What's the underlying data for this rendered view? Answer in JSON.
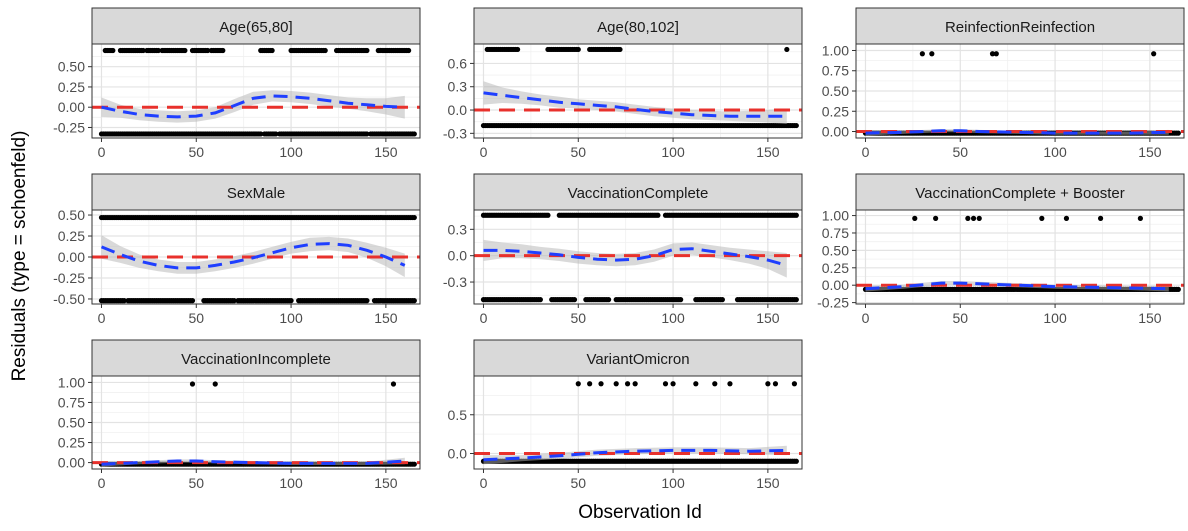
{
  "chart_data": {
    "type": "scatter",
    "xlabel": "Observation Id",
    "ylabel": "Residuals (type = schoenfeld)",
    "grid": true,
    "colors": {
      "points": "#000000",
      "smooth": "#1f3fff",
      "reference": "#e8312c",
      "band": "#b3b3b3",
      "strip": "#d9d9d9"
    },
    "panels": [
      {
        "title": "Age(65,80]",
        "xlim": [
          -5,
          168
        ],
        "ylim": [
          -0.38,
          0.78
        ],
        "xticks": [
          0,
          50,
          100,
          150
        ],
        "yticks": [
          -0.25,
          0.0,
          0.25,
          0.5
        ],
        "ytick_labels": [
          "-0.25",
          "0.00",
          "0.25",
          "0.50"
        ],
        "points": {
          "levels": [
            0.7,
            -0.33
          ],
          "top_ranges": [
            [
              2,
              6
            ],
            [
              10,
              22
            ],
            [
              24,
              30
            ],
            [
              32,
              44
            ],
            [
              48,
              56
            ],
            [
              58,
              64
            ],
            [
              84,
              90
            ],
            [
              100,
              118
            ],
            [
              124,
              140
            ],
            [
              146,
              162
            ]
          ],
          "bottom_ranges": [
            [
              0,
              84
            ],
            [
              86,
              92
            ],
            [
              94,
              140
            ],
            [
              142,
              165
            ]
          ]
        },
        "smooth": {
          "x": [
            0,
            10,
            20,
            30,
            40,
            50,
            60,
            70,
            80,
            90,
            100,
            110,
            120,
            130,
            140,
            150,
            160
          ],
          "y": [
            0.0,
            -0.05,
            -0.09,
            -0.11,
            -0.12,
            -0.11,
            -0.07,
            0.02,
            0.11,
            0.14,
            0.13,
            0.11,
            0.08,
            0.05,
            0.03,
            0.01,
            0.0
          ],
          "band": [
            0.12,
            0.08,
            0.07,
            0.07,
            0.07,
            0.07,
            0.07,
            0.08,
            0.08,
            0.07,
            0.07,
            0.07,
            0.07,
            0.07,
            0.08,
            0.1,
            0.14
          ]
        }
      },
      {
        "title": "Age(80,102]",
        "xlim": [
          -5,
          168
        ],
        "ylim": [
          -0.36,
          0.85
        ],
        "xticks": [
          0,
          50,
          100,
          150
        ],
        "yticks": [
          -0.3,
          0.0,
          0.3,
          0.6
        ],
        "ytick_labels": [
          "-0.3",
          "0.0",
          "0.3",
          "0.6"
        ],
        "points": {
          "levels": [
            0.78,
            -0.2
          ],
          "top_ranges": [
            [
              2,
              18
            ],
            [
              34,
              50
            ],
            [
              56,
              72
            ],
            [
              160,
              160
            ]
          ],
          "bottom_ranges": [
            [
              0,
              165
            ]
          ]
        },
        "smooth": {
          "x": [
            0,
            10,
            20,
            30,
            40,
            50,
            60,
            70,
            80,
            90,
            100,
            110,
            120,
            130,
            140,
            150,
            160
          ],
          "y": [
            0.22,
            0.19,
            0.16,
            0.13,
            0.1,
            0.08,
            0.06,
            0.04,
            0.01,
            -0.02,
            -0.04,
            -0.06,
            -0.07,
            -0.08,
            -0.08,
            -0.08,
            -0.08
          ],
          "band": [
            0.15,
            0.1,
            0.08,
            0.07,
            0.07,
            0.06,
            0.06,
            0.06,
            0.06,
            0.06,
            0.06,
            0.06,
            0.06,
            0.06,
            0.07,
            0.08,
            0.1
          ]
        }
      },
      {
        "title": "ReinfectionReinfection",
        "xlim": [
          -5,
          168
        ],
        "ylim": [
          -0.08,
          1.08
        ],
        "xticks": [
          0,
          50,
          100,
          150
        ],
        "yticks": [
          0.0,
          0.25,
          0.5,
          0.75,
          1.0
        ],
        "ytick_labels": [
          "0.00",
          "0.25",
          "0.50",
          "0.75",
          "1.00"
        ],
        "points": {
          "levels": [
            0.96,
            -0.02
          ],
          "top_ranges": [
            [
              30,
              30
            ],
            [
              35,
              35
            ],
            [
              67,
              67
            ],
            [
              69,
              69
            ],
            [
              152,
              152
            ]
          ],
          "bottom_ranges": [
            [
              0,
              165
            ]
          ]
        },
        "smooth": {
          "x": [
            0,
            20,
            40,
            50,
            60,
            80,
            100,
            120,
            140,
            160
          ],
          "y": [
            -0.02,
            -0.01,
            0.01,
            0.01,
            0.0,
            -0.01,
            -0.02,
            -0.02,
            -0.02,
            -0.01
          ],
          "band": [
            0.03,
            0.02,
            0.02,
            0.02,
            0.02,
            0.02,
            0.02,
            0.02,
            0.02,
            0.03
          ]
        }
      },
      {
        "title": "SexMale",
        "xlim": [
          -5,
          168
        ],
        "ylim": [
          -0.56,
          0.56
        ],
        "xticks": [
          0,
          50,
          100,
          150
        ],
        "yticks": [
          -0.5,
          -0.25,
          0.0,
          0.25,
          0.5
        ],
        "ytick_labels": [
          "-0.50",
          "-0.25",
          "0.00",
          "0.25",
          "0.50"
        ],
        "points": {
          "levels": [
            0.47,
            -0.52
          ],
          "top_ranges": [
            [
              0,
              165
            ]
          ],
          "bottom_ranges": [
            [
              0,
              12
            ],
            [
              14,
              48
            ],
            [
              54,
              70
            ],
            [
              72,
              100
            ],
            [
              104,
              140
            ],
            [
              144,
              165
            ]
          ]
        },
        "smooth": {
          "x": [
            0,
            10,
            20,
            30,
            40,
            50,
            60,
            70,
            80,
            90,
            100,
            110,
            120,
            130,
            140,
            150,
            160
          ],
          "y": [
            0.12,
            0.03,
            -0.05,
            -0.1,
            -0.13,
            -0.13,
            -0.1,
            -0.06,
            -0.01,
            0.05,
            0.11,
            0.15,
            0.16,
            0.14,
            0.08,
            0.0,
            -0.1
          ],
          "band": [
            0.14,
            0.1,
            0.08,
            0.07,
            0.07,
            0.07,
            0.07,
            0.07,
            0.07,
            0.07,
            0.07,
            0.08,
            0.08,
            0.08,
            0.09,
            0.11,
            0.14
          ]
        }
      },
      {
        "title": "VaccinationComplete",
        "xlim": [
          -5,
          168
        ],
        "ylim": [
          -0.55,
          0.52
        ],
        "xticks": [
          0,
          50,
          100,
          150
        ],
        "yticks": [
          -0.3,
          0.0,
          0.3
        ],
        "ytick_labels": [
          "-0.3",
          "0.0",
          "0.3"
        ],
        "points": {
          "levels": [
            0.46,
            -0.5
          ],
          "top_ranges": [
            [
              0,
              34
            ],
            [
              40,
              92
            ],
            [
              96,
              165
            ]
          ],
          "bottom_ranges": [
            [
              0,
              30
            ],
            [
              36,
              48
            ],
            [
              54,
              66
            ],
            [
              70,
              104
            ],
            [
              112,
              126
            ],
            [
              134,
              165
            ]
          ]
        },
        "smooth": {
          "x": [
            0,
            10,
            20,
            30,
            40,
            50,
            60,
            70,
            80,
            90,
            100,
            110,
            120,
            130,
            140,
            150,
            160
          ],
          "y": [
            0.06,
            0.06,
            0.05,
            0.03,
            0.01,
            -0.02,
            -0.04,
            -0.05,
            -0.04,
            0.0,
            0.07,
            0.08,
            0.05,
            0.02,
            -0.01,
            -0.05,
            -0.11
          ],
          "band": [
            0.12,
            0.09,
            0.08,
            0.07,
            0.07,
            0.07,
            0.07,
            0.07,
            0.07,
            0.07,
            0.07,
            0.07,
            0.07,
            0.07,
            0.08,
            0.1,
            0.14
          ]
        }
      },
      {
        "title": "VaccinationComplete + Booster",
        "xlim": [
          -5,
          168
        ],
        "ylim": [
          -0.27,
          1.08
        ],
        "xticks": [
          0,
          50,
          100,
          150
        ],
        "yticks": [
          -0.25,
          0.0,
          0.25,
          0.5,
          0.75,
          1.0
        ],
        "ytick_labels": [
          "-0.25",
          "0.00",
          "0.25",
          "0.50",
          "0.75",
          "1.00"
        ],
        "points": {
          "levels": [
            0.96,
            -0.06
          ],
          "top_ranges": [
            [
              26,
              26
            ],
            [
              37,
              37
            ],
            [
              54,
              54
            ],
            [
              57,
              57
            ],
            [
              60,
              60
            ],
            [
              93,
              93
            ],
            [
              106,
              106
            ],
            [
              124,
              124
            ],
            [
              145,
              145
            ]
          ],
          "bottom_ranges": [
            [
              0,
              165
            ]
          ]
        },
        "smooth": {
          "x": [
            0,
            20,
            40,
            50,
            60,
            80,
            100,
            120,
            140,
            160
          ],
          "y": [
            -0.05,
            -0.02,
            0.03,
            0.03,
            0.02,
            0.0,
            -0.02,
            -0.03,
            -0.04,
            -0.05
          ],
          "band": [
            0.04,
            0.03,
            0.03,
            0.03,
            0.03,
            0.03,
            0.03,
            0.03,
            0.03,
            0.04
          ]
        }
      },
      {
        "title": "VaccinationIncomplete",
        "xlim": [
          -5,
          168
        ],
        "ylim": [
          -0.08,
          1.08
        ],
        "xticks": [
          0,
          50,
          100,
          150
        ],
        "yticks": [
          0.0,
          0.25,
          0.5,
          0.75,
          1.0
        ],
        "ytick_labels": [
          "0.00",
          "0.25",
          "0.50",
          "0.75",
          "1.00"
        ],
        "points": {
          "levels": [
            0.98,
            -0.02
          ],
          "top_ranges": [
            [
              48,
              48
            ],
            [
              60,
              60
            ],
            [
              154,
              154
            ]
          ],
          "bottom_ranges": [
            [
              0,
              165
            ]
          ]
        },
        "smooth": {
          "x": [
            0,
            20,
            40,
            50,
            60,
            80,
            100,
            120,
            140,
            160
          ],
          "y": [
            -0.02,
            0.0,
            0.02,
            0.02,
            0.01,
            0.0,
            -0.01,
            -0.01,
            -0.01,
            0.02
          ],
          "band": [
            0.03,
            0.02,
            0.02,
            0.02,
            0.02,
            0.02,
            0.02,
            0.02,
            0.02,
            0.04
          ]
        }
      },
      {
        "title": "VariantOmicron",
        "xlim": [
          -5,
          168
        ],
        "ylim": [
          -0.2,
          1.0
        ],
        "xticks": [
          0,
          50,
          100,
          150
        ],
        "yticks": [
          0.0,
          0.5
        ],
        "ytick_labels": [
          "0.0",
          "0.5"
        ],
        "points": {
          "levels": [
            0.9,
            -0.1
          ],
          "top_ranges": [
            [
              50,
              50
            ],
            [
              56,
              56
            ],
            [
              62,
              62
            ],
            [
              70,
              70
            ],
            [
              76,
              76
            ],
            [
              80,
              80
            ],
            [
              96,
              96
            ],
            [
              100,
              100
            ],
            [
              112,
              112
            ],
            [
              122,
              122
            ],
            [
              130,
              130
            ],
            [
              150,
              150
            ],
            [
              154,
              154
            ],
            [
              164,
              164
            ]
          ],
          "bottom_ranges": [
            [
              0,
              165
            ]
          ]
        },
        "smooth": {
          "x": [
            0,
            20,
            40,
            50,
            60,
            80,
            100,
            120,
            140,
            160
          ],
          "y": [
            -0.08,
            -0.06,
            -0.03,
            -0.01,
            0.01,
            0.03,
            0.04,
            0.04,
            0.03,
            0.04
          ],
          "band": [
            0.06,
            0.04,
            0.04,
            0.04,
            0.04,
            0.04,
            0.04,
            0.04,
            0.04,
            0.06
          ]
        }
      }
    ]
  }
}
